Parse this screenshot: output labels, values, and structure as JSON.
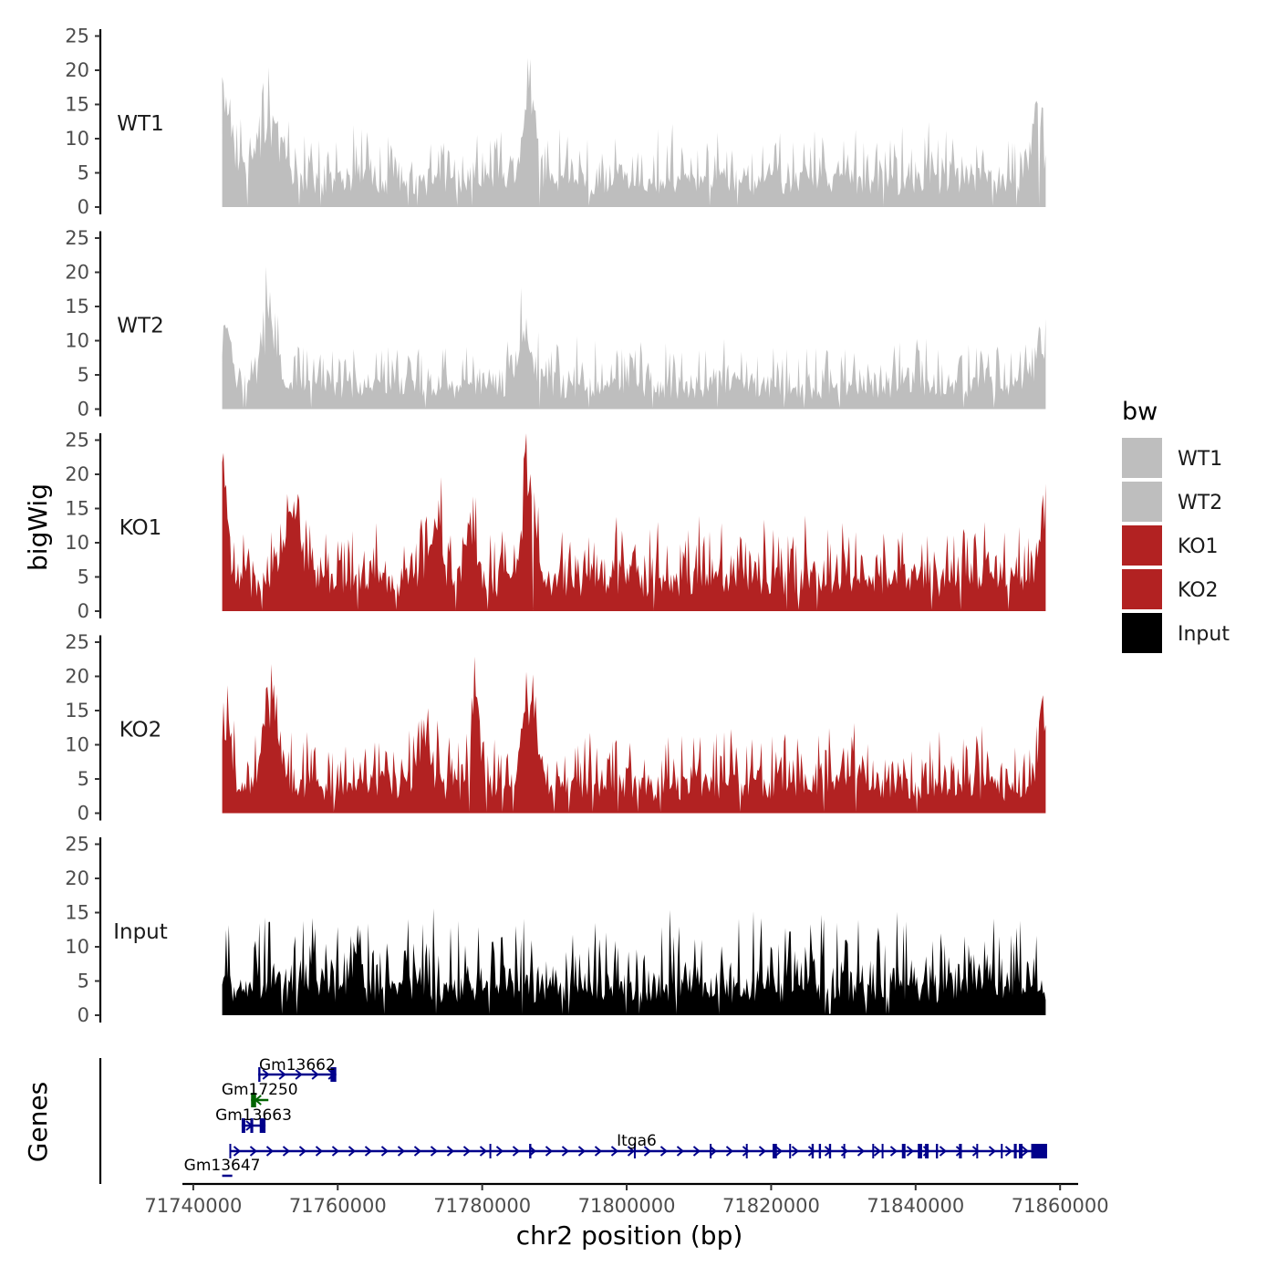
{
  "chart_data": {
    "type": "area",
    "title": "",
    "xlabel": "chr2 position (bp)",
    "ylabel": "bigWig",
    "genes_ylabel": "Genes",
    "xlim": [
      71738500,
      71862500
    ],
    "data_range": [
      71744000,
      71858000
    ],
    "x_ticks": [
      71740000,
      71760000,
      71780000,
      71800000,
      71820000,
      71840000,
      71860000
    ],
    "x_tick_labels": [
      "71740000",
      "71760000",
      "71780000",
      "71800000",
      "71820000",
      "71840000",
      "71860000"
    ],
    "ylim": [
      0,
      26
    ],
    "y_ticks": [
      0,
      5,
      10,
      15,
      20,
      25
    ],
    "y_tick_labels": [
      "0",
      "5",
      "10",
      "15",
      "20",
      "25"
    ],
    "legend": {
      "title": "bw",
      "position": "right",
      "entries": [
        {
          "label": "WT1",
          "color": "#bebebe"
        },
        {
          "label": "WT2",
          "color": "#bebebe"
        },
        {
          "label": "KO1",
          "color": "#b22222"
        },
        {
          "label": "KO2",
          "color": "#b22222"
        },
        {
          "label": "Input",
          "color": "#000000"
        }
      ]
    },
    "series": [
      {
        "name": "WT1",
        "color": "#bebebe",
        "baseline": 3.2,
        "noise": 3.5,
        "seed": 11,
        "peaks": [
          [
            71744000,
            16,
            1500
          ],
          [
            71750500,
            11,
            2500
          ],
          [
            71786500,
            14,
            1300
          ],
          [
            71857000,
            11,
            900
          ]
        ]
      },
      {
        "name": "WT2",
        "color": "#bebebe",
        "baseline": 2.8,
        "noise": 3.2,
        "seed": 23,
        "peaks": [
          [
            71744500,
            8,
            1200
          ],
          [
            71750500,
            12,
            1500
          ],
          [
            71786000,
            10,
            1500
          ],
          [
            71857500,
            8,
            900
          ]
        ]
      },
      {
        "name": "KO1",
        "color": "#b22222",
        "baseline": 3.8,
        "noise": 4.0,
        "seed": 37,
        "peaks": [
          [
            71744200,
            17,
            900
          ],
          [
            71754000,
            10,
            2000
          ],
          [
            71773500,
            9,
            1200
          ],
          [
            71778500,
            10,
            1000
          ],
          [
            71786500,
            15,
            1300
          ],
          [
            71857500,
            10,
            900
          ]
        ]
      },
      {
        "name": "KO2",
        "color": "#b22222",
        "baseline": 3.5,
        "noise": 3.8,
        "seed": 53,
        "peaks": [
          [
            71744500,
            9,
            900
          ],
          [
            71750500,
            13,
            1400
          ],
          [
            71772000,
            7,
            1500
          ],
          [
            71779000,
            14,
            1000
          ],
          [
            71786500,
            13,
            1400
          ],
          [
            71857800,
            12,
            700
          ]
        ]
      },
      {
        "name": "Input",
        "color": "#000000",
        "baseline": 3.5,
        "noise": 5.0,
        "seed": 71,
        "peaks": []
      }
    ],
    "genes": [
      {
        "name": "Gm13662",
        "start": 71749000,
        "end": 71759800,
        "strand": "+",
        "color": "#00008b",
        "row": 3,
        "exons": [
          [
            71749000,
            71749300
          ],
          [
            71759000,
            71759800
          ]
        ]
      },
      {
        "name": "Gm17250",
        "start": 71748000,
        "end": 71750400,
        "strand": "-",
        "color": "#006400",
        "row": 2,
        "exons": [
          [
            71748000,
            71748700
          ]
        ]
      },
      {
        "name": "Gm13663",
        "start": 71746700,
        "end": 71750000,
        "strand": "+",
        "color": "#00008b",
        "row": 1,
        "exons": [
          [
            71746700,
            71747200
          ],
          [
            71747900,
            71748300
          ],
          [
            71749200,
            71750000
          ]
        ]
      },
      {
        "name": "Itga6",
        "start": 71745000,
        "end": 71858200,
        "strand": "+",
        "color": "#00008b",
        "row": 0,
        "exons": [
          [
            71745000,
            71745200
          ],
          [
            71781000,
            71781150
          ],
          [
            71786500,
            71786800
          ],
          [
            71801000,
            71801150
          ],
          [
            71811500,
            71811650
          ],
          [
            71816500,
            71816650
          ],
          [
            71820200,
            71820800
          ],
          [
            71822500,
            71822650
          ],
          [
            71825600,
            71825900
          ],
          [
            71826600,
            71826900
          ],
          [
            71828000,
            71828300
          ],
          [
            71830000,
            71830200
          ],
          [
            71834000,
            71834200
          ],
          [
            71835300,
            71835500
          ],
          [
            71838100,
            71838600
          ],
          [
            71840300,
            71840900
          ],
          [
            71841300,
            71841800
          ],
          [
            71842800,
            71843100
          ],
          [
            71846000,
            71846400
          ],
          [
            71848400,
            71848600
          ],
          [
            71851800,
            71852000
          ],
          [
            71853600,
            71854000
          ],
          [
            71854300,
            71854800
          ],
          [
            71856000,
            71858200
          ]
        ]
      },
      {
        "name": "Gm13647",
        "start": 71744000,
        "end": 71745400,
        "strand": "+",
        "color": "#00008b",
        "row": -1,
        "exons": []
      }
    ]
  }
}
